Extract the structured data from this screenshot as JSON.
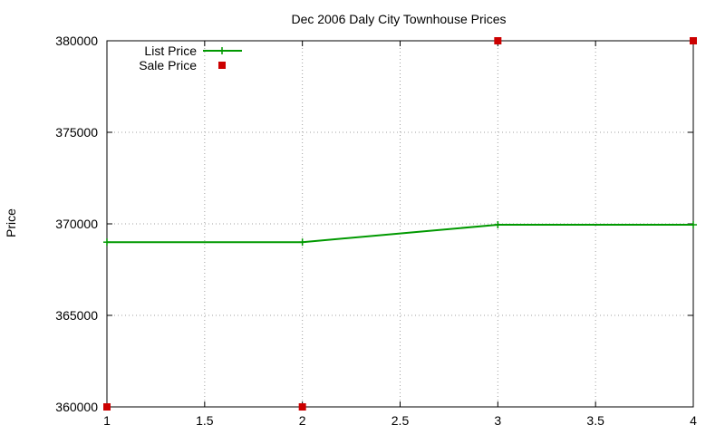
{
  "chart_data": {
    "type": "line",
    "title": "Dec 2006 Daly City Townhouse Prices",
    "xlabel": "",
    "ylabel": "Price",
    "xlim": [
      1,
      4
    ],
    "ylim": [
      360000,
      380000
    ],
    "xticks": [
      "1",
      "1.5",
      "2",
      "2.5",
      "3",
      "3.5",
      "4"
    ],
    "yticks": [
      "360000",
      "365000",
      "370000",
      "375000",
      "380000"
    ],
    "grid": true,
    "legend_position": "top-left",
    "series": [
      {
        "name": "List Price",
        "style": "lines+points",
        "color": "#009900",
        "marker": "plus",
        "x": [
          1,
          2,
          3,
          4
        ],
        "y": [
          369000,
          369000,
          369950,
          369950
        ]
      },
      {
        "name": "Sale Price",
        "style": "points",
        "color": "#cc0000",
        "marker": "square",
        "x": [
          1,
          2,
          3,
          4
        ],
        "y": [
          360000,
          360000,
          380000,
          380000
        ]
      }
    ]
  }
}
